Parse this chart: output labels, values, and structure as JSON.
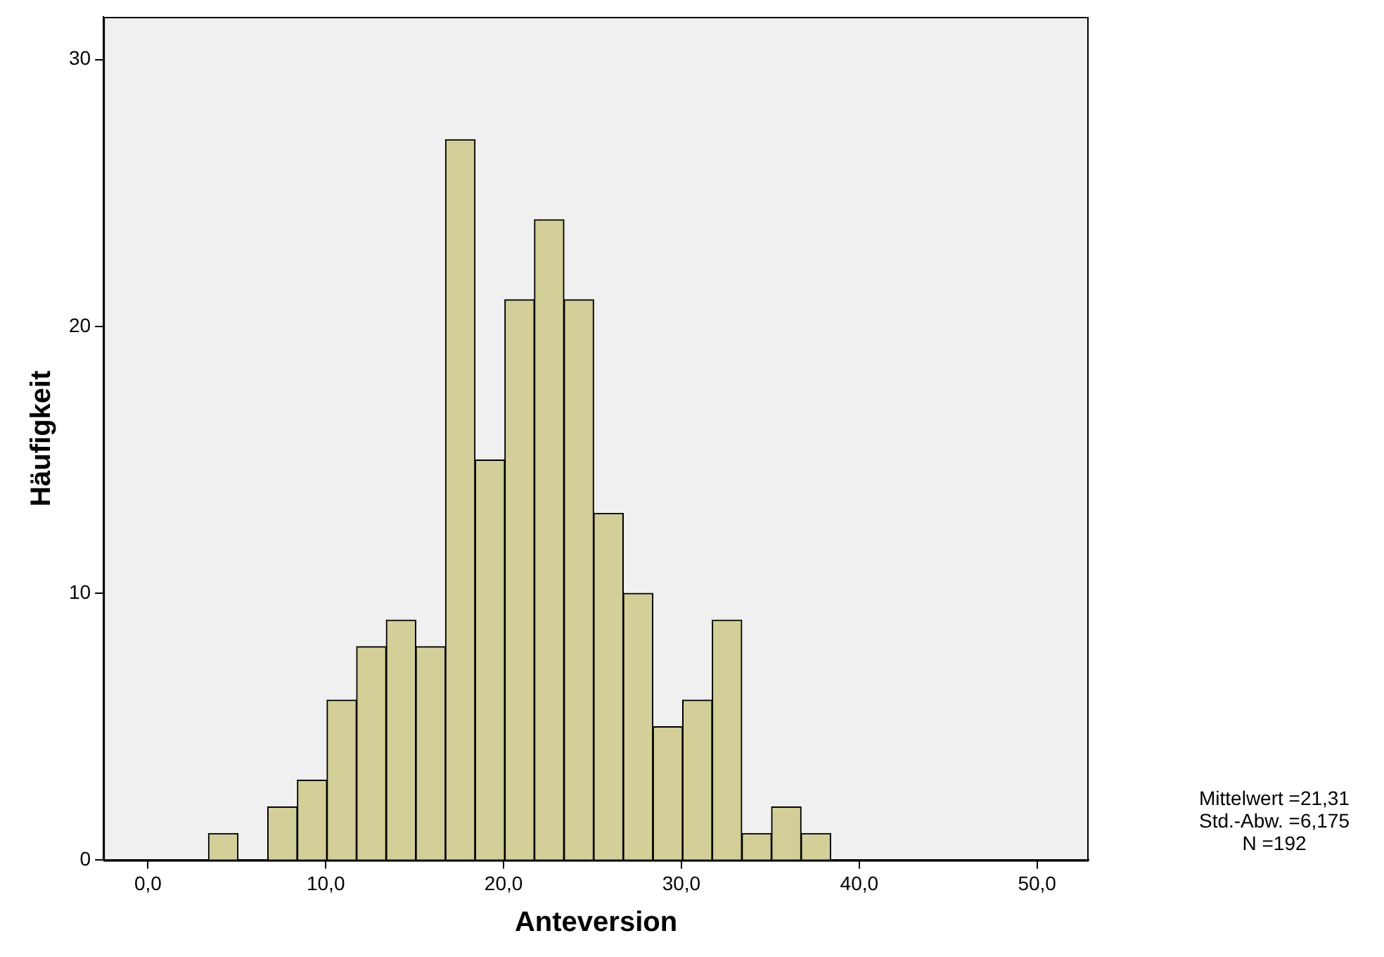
{
  "chart_data": {
    "type": "histogram",
    "xlabel": "Anteversion",
    "ylabel": "Häufigkeit",
    "bins": [
      3.4,
      5.07,
      6.73,
      8.4,
      10.07,
      11.73,
      13.4,
      15.07,
      16.73,
      18.4,
      20.07,
      21.73,
      23.4,
      25.07,
      26.73,
      28.4,
      30.07,
      31.73,
      33.4,
      35.07,
      36.73,
      38.4
    ],
    "values": [
      1,
      0,
      2,
      3,
      6,
      8,
      9,
      8,
      27,
      15,
      21,
      24,
      21,
      13,
      10,
      5,
      6,
      9,
      1,
      2,
      1
    ],
    "color": "#d3cf98",
    "xlim": [
      -2.5,
      52.9
    ],
    "xticks": [
      {
        "value": 0,
        "label": "0,0"
      },
      {
        "value": 10,
        "label": "10,0"
      },
      {
        "value": 20,
        "label": "20,0"
      },
      {
        "value": 30,
        "label": "30,0"
      },
      {
        "value": 40,
        "label": "40,0"
      },
      {
        "value": 50,
        "label": "50,0"
      }
    ],
    "ylim": [
      0,
      31.6
    ],
    "yticks": [
      0,
      10,
      20,
      30
    ],
    "grid": false,
    "legend": false,
    "annotations": [
      "Mittelwert =21,31",
      "Std.-Abw. =6,175",
      "N =192"
    ]
  }
}
